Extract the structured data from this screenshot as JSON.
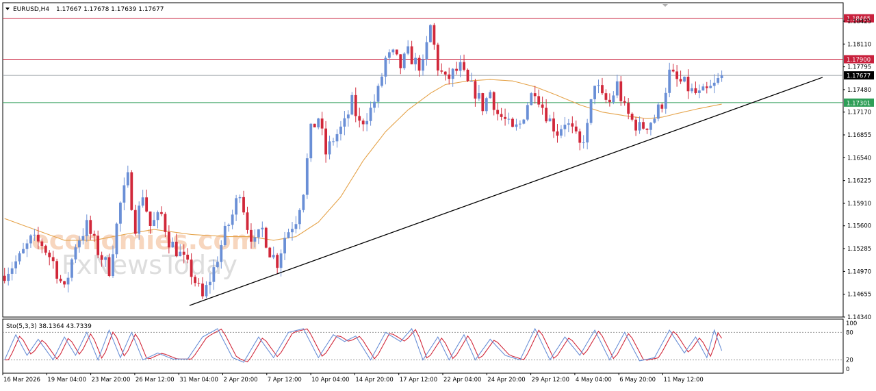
{
  "header": {
    "symbol_timeframe": "EURUSD,H4",
    "ohlc": "1.17667 1.17678 1.17639 1.17677"
  },
  "watermark": {
    "line1": "economies.com",
    "line2": "FxNewsToday"
  },
  "colors": {
    "bull_candle": "#6a8fd6",
    "bear_candle": "#d1283a",
    "moving_average": "#e5a34a",
    "resistance_line": "#c8203c",
    "support_line": "#2e9e57",
    "current_price_line": "#9aa0a6",
    "trendline": "#000000",
    "stoch_main": "#6a8fd6",
    "stoch_signal": "#d1283a"
  },
  "chart_data": [
    {
      "type": "candlestick",
      "name": "EURUSD,H4",
      "ylim": [
        1.1434,
        1.1868
      ],
      "y_ticks": [
        1.18425,
        1.1811,
        1.17795,
        1.1748,
        1.1717,
        1.16855,
        1.1654,
        1.16225,
        1.1591,
        1.156,
        1.15285,
        1.1497,
        1.14655,
        1.1434
      ],
      "x_ticks": [
        "16 Mar 2026",
        "19 Mar 04:00",
        "23 Mar 20:00",
        "26 Mar 12:00",
        "31 Mar 04:00",
        "2 Apr 20:00",
        "7 Apr 12:00",
        "10 Apr 04:00",
        "14 Apr 20:00",
        "17 Apr 12:00",
        "22 Apr 04:00",
        "24 Apr 20:00",
        "29 Apr 12:00",
        "4 May 04:00",
        "6 May 20:00",
        "11 May 12:00"
      ],
      "close_path": [
        [
          0,
          1.1495
        ],
        [
          4,
          1.1515
        ],
        [
          7,
          1.154
        ],
        [
          10,
          1.1535
        ],
        [
          13,
          1.151
        ],
        [
          16,
          1.147
        ],
        [
          19,
          1.1535
        ],
        [
          22,
          1.156
        ],
        [
          25,
          1.1525
        ],
        [
          28,
          1.15
        ],
        [
          31,
          1.159
        ],
        [
          33,
          1.1625
        ],
        [
          35,
          1.156
        ],
        [
          37,
          1.1605
        ],
        [
          39,
          1.156
        ],
        [
          42,
          1.1575
        ],
        [
          44,
          1.154
        ],
        [
          47,
          1.152
        ],
        [
          50,
          1.1495
        ],
        [
          53,
          1.146
        ],
        [
          56,
          1.15
        ],
        [
          59,
          1.155
        ],
        [
          61,
          1.1575
        ],
        [
          63,
          1.161
        ],
        [
          65,
          1.156
        ],
        [
          67,
          1.1535
        ],
        [
          69,
          1.1555
        ],
        [
          71,
          1.1525
        ],
        [
          73,
          1.151
        ],
        [
          75,
          1.1545
        ],
        [
          78,
          1.157
        ],
        [
          80,
          1.161
        ],
        [
          82,
          1.169
        ],
        [
          84,
          1.171
        ],
        [
          86,
          1.166
        ],
        [
          88,
          1.168
        ],
        [
          91,
          1.17
        ],
        [
          93,
          1.173
        ],
        [
          95,
          1.17
        ],
        [
          98,
          1.172
        ],
        [
          100,
          1.1745
        ],
        [
          102,
          1.179
        ],
        [
          104,
          1.1795
        ],
        [
          106,
          1.178
        ],
        [
          108,
          1.1798
        ],
        [
          110,
          1.1785
        ],
        [
          112,
          1.178
        ],
        [
          114,
          1.1835
        ],
        [
          116,
          1.178
        ],
        [
          118,
          1.176
        ],
        [
          120,
          1.177
        ],
        [
          122,
          1.1778
        ],
        [
          124,
          1.1755
        ],
        [
          126,
          1.1745
        ],
        [
          128,
          1.1725
        ],
        [
          130,
          1.1745
        ],
        [
          132,
          1.1715
        ],
        [
          134,
          1.1705
        ],
        [
          136,
          1.169
        ],
        [
          138,
          1.17
        ],
        [
          140,
          1.173
        ],
        [
          142,
          1.175
        ],
        [
          144,
          1.1725
        ],
        [
          146,
          1.1705
        ],
        [
          148,
          1.169
        ],
        [
          150,
          1.1705
        ],
        [
          152,
          1.169
        ],
        [
          154,
          1.167
        ],
        [
          156,
          1.1695
        ],
        [
          158,
          1.176
        ],
        [
          160,
          1.1735
        ],
        [
          162,
          1.173
        ],
        [
          164,
          1.1755
        ],
        [
          166,
          1.172
        ],
        [
          168,
          1.1705
        ],
        [
          170,
          1.1695
        ],
        [
          172,
          1.17
        ],
        [
          174,
          1.171
        ],
        [
          176,
          1.173
        ],
        [
          178,
          1.177
        ],
        [
          180,
          1.176
        ],
        [
          182,
          1.1755
        ],
        [
          184,
          1.1745
        ],
        [
          186,
          1.174
        ],
        [
          188,
          1.1745
        ],
        [
          190,
          1.1753
        ],
        [
          192,
          1.1767
        ]
      ],
      "moving_average": [
        [
          0,
          1.157
        ],
        [
          8,
          1.1555
        ],
        [
          16,
          1.154
        ],
        [
          24,
          1.154
        ],
        [
          32,
          1.1548
        ],
        [
          40,
          1.1555
        ],
        [
          50,
          1.1548
        ],
        [
          60,
          1.1545
        ],
        [
          66,
          1.1545
        ],
        [
          72,
          1.154
        ],
        [
          78,
          1.1545
        ],
        [
          84,
          1.1565
        ],
        [
          90,
          1.16
        ],
        [
          96,
          1.165
        ],
        [
          102,
          1.169
        ],
        [
          108,
          1.172
        ],
        [
          114,
          1.1743
        ],
        [
          118,
          1.1755
        ],
        [
          124,
          1.176
        ],
        [
          130,
          1.1762
        ],
        [
          136,
          1.176
        ],
        [
          142,
          1.1752
        ],
        [
          148,
          1.174
        ],
        [
          154,
          1.1727
        ],
        [
          160,
          1.1717
        ],
        [
          166,
          1.1712
        ],
        [
          172,
          1.1708
        ],
        [
          176,
          1.171
        ],
        [
          180,
          1.1715
        ],
        [
          186,
          1.1722
        ],
        [
          192,
          1.1728
        ]
      ],
      "horizontal_levels": [
        {
          "value": 1.18465,
          "label": "1.18465",
          "role": "resistance"
        },
        {
          "value": 1.179,
          "label": "1.17900",
          "role": "resistance"
        },
        {
          "value": 1.17677,
          "label": "1.17677",
          "role": "current_price"
        },
        {
          "value": 1.17301,
          "label": "1.17301",
          "role": "support"
        }
      ],
      "trendline": {
        "from": [
          49.5,
          1.145
        ],
        "to": [
          219,
          1.1765
        ]
      },
      "last_bar_index": 192,
      "bar_count_visible": 225
    },
    {
      "type": "line",
      "name": "Sto(5,3,3) 38.1364 43.7339",
      "indicator_label": "Sto(5,3,3) 38.1364 43.7339",
      "ylim": [
        0,
        100
      ],
      "y_ticks": [
        "100",
        "80",
        "20",
        "0"
      ],
      "levels": [
        80,
        20
      ],
      "main_pivots": [
        [
          0,
          20
        ],
        [
          3,
          75
        ],
        [
          6,
          30
        ],
        [
          9,
          65
        ],
        [
          13,
          20
        ],
        [
          16,
          70
        ],
        [
          19,
          30
        ],
        [
          22,
          80
        ],
        [
          25,
          20
        ],
        [
          28,
          85
        ],
        [
          31,
          25
        ],
        [
          34,
          80
        ],
        [
          37,
          20
        ],
        [
          41,
          35
        ],
        [
          45,
          22
        ],
        [
          49,
          22
        ],
        [
          53,
          70
        ],
        [
          57,
          88
        ],
        [
          61,
          25
        ],
        [
          64,
          15
        ],
        [
          68,
          70
        ],
        [
          72,
          25
        ],
        [
          76,
          80
        ],
        [
          80,
          88
        ],
        [
          84,
          25
        ],
        [
          88,
          75
        ],
        [
          91,
          60
        ],
        [
          94,
          72
        ],
        [
          98,
          20
        ],
        [
          102,
          80
        ],
        [
          106,
          60
        ],
        [
          109,
          88
        ],
        [
          112,
          20
        ],
        [
          116,
          70
        ],
        [
          119,
          20
        ],
        [
          123,
          75
        ],
        [
          126,
          20
        ],
        [
          130,
          65
        ],
        [
          134,
          30
        ],
        [
          138,
          20
        ],
        [
          142,
          88
        ],
        [
          146,
          20
        ],
        [
          150,
          70
        ],
        [
          154,
          30
        ],
        [
          158,
          85
        ],
        [
          162,
          20
        ],
        [
          166,
          80
        ],
        [
          170,
          18
        ],
        [
          174,
          25
        ],
        [
          178,
          85
        ],
        [
          182,
          35
        ],
        [
          185,
          70
        ],
        [
          188,
          25
        ],
        [
          190,
          85
        ],
        [
          192,
          40
        ]
      ]
    }
  ]
}
